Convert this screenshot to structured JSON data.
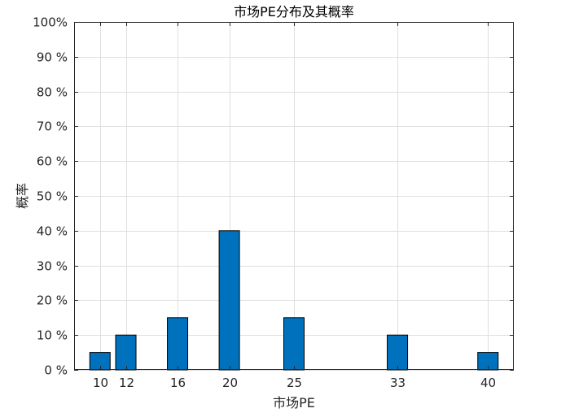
{
  "chart_data": {
    "type": "bar",
    "title": "市场PE分布及其概率",
    "xlabel": "市场PE",
    "ylabel": "概率",
    "x": [
      10,
      12,
      16,
      20,
      25,
      33,
      40
    ],
    "values": [
      0.05,
      0.1,
      0.15,
      0.4,
      0.15,
      0.1,
      0.05
    ],
    "x_tick_labels": [
      "10",
      "12",
      "16",
      "20",
      "25",
      "33",
      "40"
    ],
    "xlim": [
      8,
      42
    ],
    "ylim": [
      0,
      1
    ],
    "y_ticks": [
      0,
      0.1,
      0.2,
      0.3,
      0.4,
      0.5,
      0.6,
      0.7,
      0.8,
      0.9,
      1.0
    ],
    "y_tick_labels": [
      "0 %",
      "10 %",
      "20 %",
      "30 %",
      "40 %",
      "50 %",
      "60 %",
      "70 %",
      "80 %",
      "90 %",
      "100%"
    ],
    "grid": true,
    "bar_color": "#0072BD",
    "bar_edge_color": "#000000"
  }
}
